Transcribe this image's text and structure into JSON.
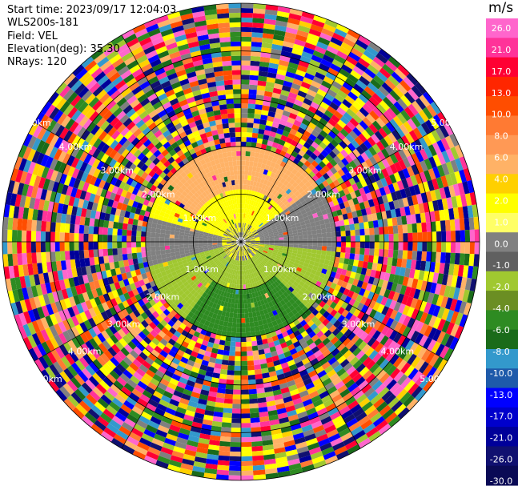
{
  "header": {
    "start_time": "Start time: 2023/09/17 12:04:03",
    "instrument": "WLS200s-181",
    "field": "Field: VEL",
    "elevation": "Elevation(deg): 35.30",
    "nrays": "NRays: 120"
  },
  "chart_data": {
    "type": "heatmap",
    "projection": "polar PPI",
    "field": "VEL",
    "units": "m/s",
    "n_rays": 120,
    "elevation_deg": 35.3,
    "range_rings_km": [
      1.0,
      2.0,
      3.0,
      4.0,
      5.0
    ],
    "ring_labels": [
      "1.00km",
      "2.00km",
      "3.00km",
      "4.00km",
      "5.00km"
    ],
    "colorbar": {
      "title": "m/s",
      "tick_labels": [
        "26.0",
        "21.0",
        "17.0",
        "13.0",
        "10.0",
        "8.0",
        "6.0",
        "4.0",
        "2.0",
        "1.0",
        "0.0",
        "-1.0",
        "-2.0",
        "-4.0",
        "-6.0",
        "-8.0",
        "-10.0",
        "-13.0",
        "-17.0",
        "-21.0",
        "-26.0",
        "-30.0"
      ],
      "colors": [
        "#ff66cc",
        "#ff3399",
        "#ff0033",
        "#ff2600",
        "#ff4d00",
        "#ff7a33",
        "#ff9955",
        "#ffb266",
        "#ffd000",
        "#ffff00",
        "#ffff66",
        "#808080",
        "#606060",
        "#a0c830",
        "#6b8e23",
        "#2e8b22",
        "#1a6b1a",
        "#3399cc",
        "#1e5aaa",
        "#0000ff",
        "#0000cc",
        "#000099",
        "#101070",
        "#0a0a55"
      ]
    },
    "pattern": {
      "inner_fill": "yellow/orange northerly, grey westerly/easterly, green southerly",
      "outer": "noisy multicolour beyond about 2 km"
    }
  }
}
